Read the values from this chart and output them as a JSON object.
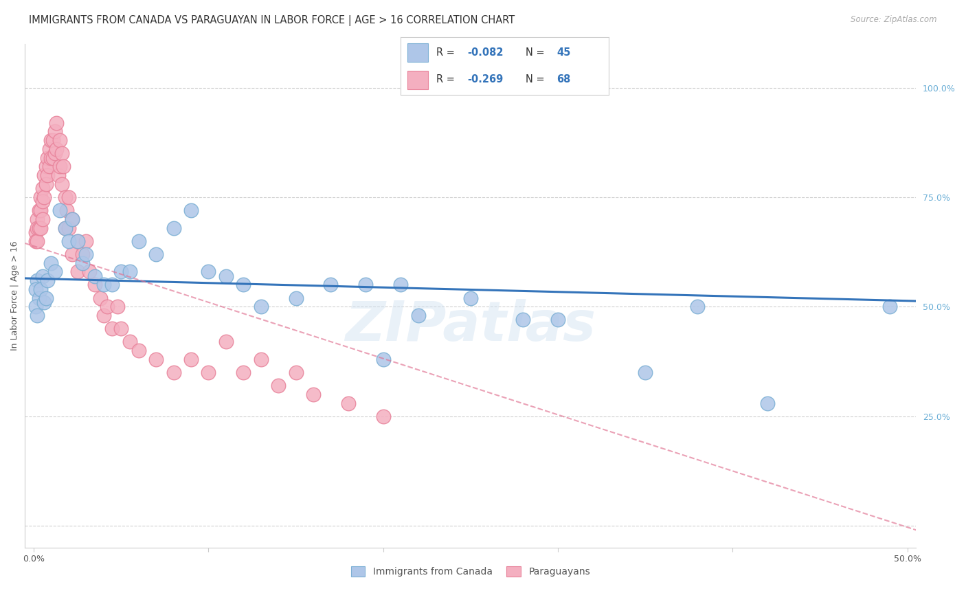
{
  "title": "IMMIGRANTS FROM CANADA VS PARAGUAYAN IN LABOR FORCE | AGE > 16 CORRELATION CHART",
  "source": "Source: ZipAtlas.com",
  "ylabel": "In Labor Force | Age > 16",
  "right_ytick_labels": [
    "100.0%",
    "75.0%",
    "50.0%",
    "25.0%",
    ""
  ],
  "right_ytick_values": [
    1.0,
    0.75,
    0.5,
    0.25,
    0.0
  ],
  "xlim": [
    -0.005,
    0.505
  ],
  "ylim": [
    -0.05,
    1.1
  ],
  "xticklabels": [
    "0.0%",
    "",
    "",
    "",
    "",
    "50.0%"
  ],
  "xtick_values": [
    0.0,
    0.1,
    0.2,
    0.3,
    0.4,
    0.5
  ],
  "legend_r_canada": "-0.082",
  "legend_n_canada": "45",
  "legend_r_paraguay": "-0.269",
  "legend_n_paraguay": "68",
  "canada_color": "#aec6e8",
  "canada_edge_color": "#7bafd4",
  "paraguay_color": "#f4afc0",
  "paraguay_edge_color": "#e8829a",
  "trend_canada_color": "#3474ba",
  "trend_paraguay_color": "#e07090",
  "background_color": "#ffffff",
  "grid_color": "#d0d0d0",
  "watermark": "ZIPatlas",
  "canada_trend_y0": 0.565,
  "canada_trend_y1": 0.513,
  "paraguay_trend_y0": 0.645,
  "paraguay_trend_y1": -0.01,
  "canada_scatter_x": [
    0.002,
    0.001,
    0.003,
    0.001,
    0.002,
    0.005,
    0.004,
    0.006,
    0.008,
    0.007,
    0.01,
    0.012,
    0.015,
    0.018,
    0.02,
    0.022,
    0.025,
    0.028,
    0.03,
    0.035,
    0.04,
    0.045,
    0.05,
    0.055,
    0.06,
    0.07,
    0.08,
    0.09,
    0.1,
    0.11,
    0.12,
    0.13,
    0.15,
    0.17,
    0.19,
    0.2,
    0.21,
    0.22,
    0.25,
    0.28,
    0.3,
    0.35,
    0.38,
    0.42,
    0.49
  ],
  "canada_scatter_y": [
    0.56,
    0.54,
    0.52,
    0.5,
    0.48,
    0.57,
    0.54,
    0.51,
    0.56,
    0.52,
    0.6,
    0.58,
    0.72,
    0.68,
    0.65,
    0.7,
    0.65,
    0.6,
    0.62,
    0.57,
    0.55,
    0.55,
    0.58,
    0.58,
    0.65,
    0.62,
    0.68,
    0.72,
    0.58,
    0.57,
    0.55,
    0.5,
    0.52,
    0.55,
    0.55,
    0.38,
    0.55,
    0.48,
    0.52,
    0.47,
    0.47,
    0.35,
    0.5,
    0.28,
    0.5
  ],
  "paraguay_scatter_x": [
    0.001,
    0.001,
    0.002,
    0.002,
    0.002,
    0.003,
    0.003,
    0.004,
    0.004,
    0.004,
    0.005,
    0.005,
    0.005,
    0.006,
    0.006,
    0.007,
    0.007,
    0.008,
    0.008,
    0.009,
    0.009,
    0.01,
    0.01,
    0.011,
    0.011,
    0.012,
    0.012,
    0.013,
    0.013,
    0.014,
    0.015,
    0.015,
    0.016,
    0.016,
    0.017,
    0.018,
    0.018,
    0.019,
    0.02,
    0.02,
    0.022,
    0.022,
    0.025,
    0.025,
    0.028,
    0.03,
    0.032,
    0.035,
    0.038,
    0.04,
    0.042,
    0.045,
    0.048,
    0.05,
    0.055,
    0.06,
    0.07,
    0.08,
    0.09,
    0.1,
    0.11,
    0.12,
    0.13,
    0.14,
    0.15,
    0.16,
    0.18,
    0.2
  ],
  "paraguay_scatter_y": [
    0.67,
    0.65,
    0.7,
    0.68,
    0.65,
    0.72,
    0.68,
    0.75,
    0.72,
    0.68,
    0.77,
    0.74,
    0.7,
    0.8,
    0.75,
    0.82,
    0.78,
    0.84,
    0.8,
    0.86,
    0.82,
    0.88,
    0.84,
    0.88,
    0.84,
    0.9,
    0.85,
    0.92,
    0.86,
    0.8,
    0.88,
    0.82,
    0.85,
    0.78,
    0.82,
    0.75,
    0.68,
    0.72,
    0.75,
    0.68,
    0.7,
    0.62,
    0.65,
    0.58,
    0.62,
    0.65,
    0.58,
    0.55,
    0.52,
    0.48,
    0.5,
    0.45,
    0.5,
    0.45,
    0.42,
    0.4,
    0.38,
    0.35,
    0.38,
    0.35,
    0.42,
    0.35,
    0.38,
    0.32,
    0.35,
    0.3,
    0.28,
    0.25
  ]
}
